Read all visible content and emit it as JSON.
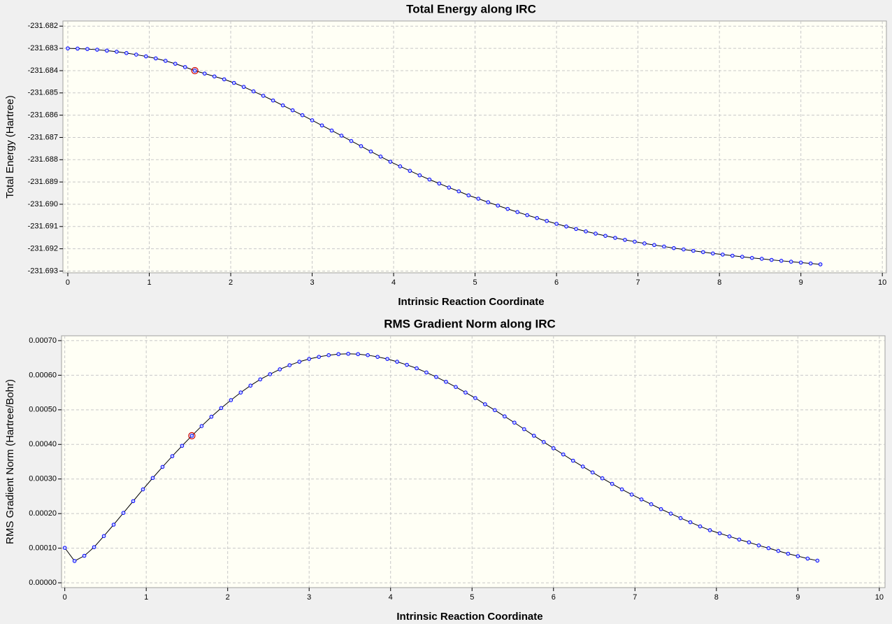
{
  "chart_data": [
    {
      "type": "line",
      "title": "Total Energy along IRC",
      "xlabel": "Intrinsic Reaction Coordinate",
      "ylabel": "Total Energy (Hartree)",
      "x": [
        0,
        0.12,
        0.24,
        0.36,
        0.48,
        0.6,
        0.72,
        0.84,
        0.96,
        1.08,
        1.2,
        1.32,
        1.44,
        1.56,
        1.68,
        1.8,
        1.92,
        2.04,
        2.16,
        2.28,
        2.4,
        2.52,
        2.64,
        2.76,
        2.88,
        3.0,
        3.12,
        3.24,
        3.36,
        3.48,
        3.6,
        3.72,
        3.84,
        3.96,
        4.08,
        4.2,
        4.32,
        4.44,
        4.56,
        4.68,
        4.8,
        4.92,
        5.04,
        5.16,
        5.28,
        5.4,
        5.52,
        5.64,
        5.76,
        5.88,
        6.0,
        6.12,
        6.24,
        6.36,
        6.48,
        6.6,
        6.72,
        6.84,
        6.96,
        7.08,
        7.2,
        7.32,
        7.44,
        7.56,
        7.68,
        7.8,
        7.92,
        8.04,
        8.16,
        8.28,
        8.4,
        8.52,
        8.64,
        8.76,
        8.88,
        9.0,
        9.12,
        9.24
      ],
      "series": [
        {
          "color": "#0000ff",
          "values": [
            -231.683,
            -231.68301,
            -231.68303,
            -231.68306,
            -231.6831,
            -231.68315,
            -231.68321,
            -231.68328,
            -231.68336,
            -231.68345,
            -231.68356,
            -231.68369,
            -231.68384,
            -231.684,
            -231.68413,
            -231.68426,
            -231.68439,
            -231.68455,
            -231.68473,
            -231.68493,
            -231.68513,
            -231.68534,
            -231.68556,
            -231.68578,
            -231.686,
            -231.68623,
            -231.68646,
            -231.68669,
            -231.68692,
            -231.68716,
            -231.68739,
            -231.68763,
            -231.68786,
            -231.68809,
            -231.6883,
            -231.6885,
            -231.6887,
            -231.68889,
            -231.68907,
            -231.68925,
            -231.68942,
            -231.6896,
            -231.68975,
            -231.68991,
            -231.69006,
            -231.69021,
            -231.69035,
            -231.69049,
            -231.69062,
            -231.69075,
            -231.69088,
            -231.691,
            -231.69111,
            -231.69122,
            -231.69132,
            -231.69142,
            -231.69151,
            -231.6916,
            -231.69168,
            -231.69176,
            -231.69183,
            -231.6919,
            -231.69197,
            -231.69203,
            -231.69209,
            -231.69215,
            -231.69221,
            -231.69226,
            -231.69231,
            -231.69236,
            -231.69241,
            -231.69245,
            -231.6925,
            -231.69254,
            -231.69258,
            -231.69262,
            -231.69266,
            -231.6927
          ]
        }
      ],
      "selected_point": 13,
      "line_color": "#000000",
      "highlight_color": "#cc0000",
      "grid": true,
      "xlim": [
        -0.06,
        10.05
      ],
      "xticks": [
        0,
        1,
        2,
        3,
        4,
        5,
        6,
        7,
        8,
        9,
        10
      ],
      "ylim": [
        -231.69308,
        -231.68177
      ],
      "yticks": [
        {
          "value": -231.693,
          "label": "-231.693"
        },
        -231.692,
        -231.691,
        {
          "value": -231.69,
          "label": "-231.690"
        },
        -231.689,
        -231.688,
        -231.687,
        -231.686,
        -231.685,
        -231.684,
        -231.683,
        -231.682
      ]
    },
    {
      "type": "line",
      "title": "RMS Gradient Norm along IRC",
      "xlabel": "Intrinsic Reaction Coordinate",
      "ylabel": "RMS Gradient Norm (Hartree/Bohr)",
      "x": [
        0,
        0.12,
        0.24,
        0.36,
        0.48,
        0.6,
        0.72,
        0.84,
        0.96,
        1.08,
        1.2,
        1.32,
        1.44,
        1.56,
        1.68,
        1.8,
        1.92,
        2.04,
        2.16,
        2.28,
        2.4,
        2.52,
        2.64,
        2.76,
        2.88,
        3.0,
        3.12,
        3.24,
        3.36,
        3.48,
        3.6,
        3.72,
        3.84,
        3.96,
        4.08,
        4.2,
        4.32,
        4.44,
        4.56,
        4.68,
        4.8,
        4.92,
        5.04,
        5.16,
        5.28,
        5.4,
        5.52,
        5.64,
        5.76,
        5.88,
        6.0,
        6.12,
        6.24,
        6.36,
        6.48,
        6.6,
        6.72,
        6.84,
        6.96,
        7.08,
        7.2,
        7.32,
        7.44,
        7.56,
        7.68,
        7.8,
        7.92,
        8.04,
        8.16,
        8.28,
        8.4,
        8.52,
        8.64,
        8.76,
        8.88,
        9.0,
        9.12,
        9.24
      ],
      "series": [
        {
          "color": "#0000ff",
          "values": [
            0.000101,
            6.3e-05,
            7.8e-05,
            0.000103,
            0.000135,
            0.000168,
            0.000202,
            0.000236,
            0.00027,
            0.000303,
            0.000335,
            0.000366,
            0.000396,
            0.000425,
            0.000453,
            0.00048,
            0.000505,
            0.000528,
            0.00055,
            0.00057,
            0.000588,
            0.000603,
            0.000617,
            0.000629,
            0.000639,
            0.000647,
            0.000653,
            0.000658,
            0.000661,
            0.000662,
            0.000661,
            0.000658,
            0.000653,
            0.000647,
            0.000639,
            0.00063,
            0.00062,
            0.000608,
            0.000595,
            0.000581,
            0.000566,
            0.00055,
            0.000534,
            0.000516,
            0.000499,
            0.000481,
            0.000463,
            0.000444,
            0.000425,
            0.000407,
            0.000389,
            0.000371,
            0.000353,
            0.000336,
            0.000319,
            0.000302,
            0.000286,
            0.00027,
            0.000255,
            0.000241,
            0.000227,
            0.000213,
            0.0002,
            0.000187,
            0.000175,
            0.000163,
            0.000152,
            0.000143,
            0.000134,
            0.000125,
            0.000117,
            0.000108,
            0.0001,
            9.2e-05,
            8.4e-05,
            7.7e-05,
            7e-05,
            6.4e-05
          ]
        }
      ],
      "selected_point": 13,
      "line_color": "#000000",
      "highlight_color": "#cc0000",
      "grid": true,
      "xlim": [
        -0.04,
        10.07
      ],
      "xticks": [
        0,
        1,
        2,
        3,
        4,
        5,
        6,
        7,
        8,
        9,
        10
      ],
      "ylim": [
        -1.4e-05,
        0.000714
      ],
      "yticks": [
        {
          "value": 0,
          "label": "0.00000"
        },
        {
          "value": 0.0001,
          "label": "0.00010"
        },
        {
          "value": 0.0002,
          "label": "0.00020"
        },
        {
          "value": 0.0003,
          "label": "0.00030"
        },
        {
          "value": 0.0004,
          "label": "0.00040"
        },
        {
          "value": 0.0005,
          "label": "0.00050"
        },
        {
          "value": 0.0006,
          "label": "0.00060"
        },
        {
          "value": 0.0007,
          "label": "0.00070"
        }
      ]
    }
  ]
}
